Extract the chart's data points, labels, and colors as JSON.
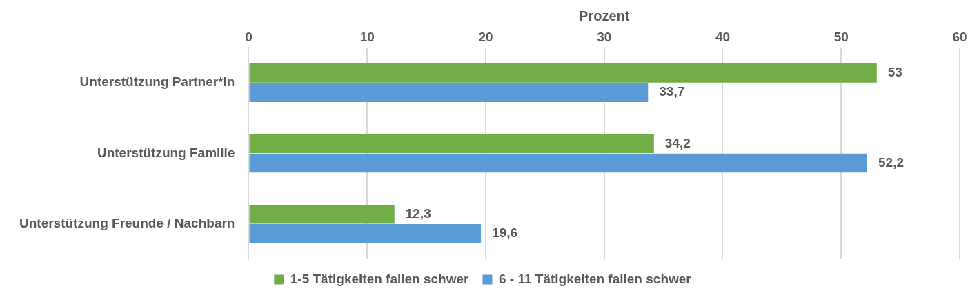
{
  "chart_data": {
    "type": "bar",
    "orientation": "horizontal",
    "xlabel": "Prozent",
    "categories": [
      "Unterstützung Partner*in",
      "Unterstützung Familie",
      "Unterstützung Freunde / Nachbarn"
    ],
    "series": [
      {
        "name": "1-5 Tätigkeiten fallen schwer",
        "color": "#70ad47",
        "values": [
          53,
          34.2,
          12.3
        ],
        "value_labels": [
          "53",
          "34,2",
          "12,3"
        ]
      },
      {
        "name": "6 - 11 Tätigkeiten fallen schwer",
        "color": "#5b9bd5",
        "values": [
          33.7,
          52.2,
          19.6
        ],
        "value_labels": [
          "33,7",
          "52,2",
          "19,6"
        ]
      }
    ],
    "xlim": [
      0,
      60
    ],
    "xticks": [
      0,
      10,
      20,
      30,
      40,
      50,
      60
    ],
    "grid": "x",
    "legend": "bottom"
  }
}
